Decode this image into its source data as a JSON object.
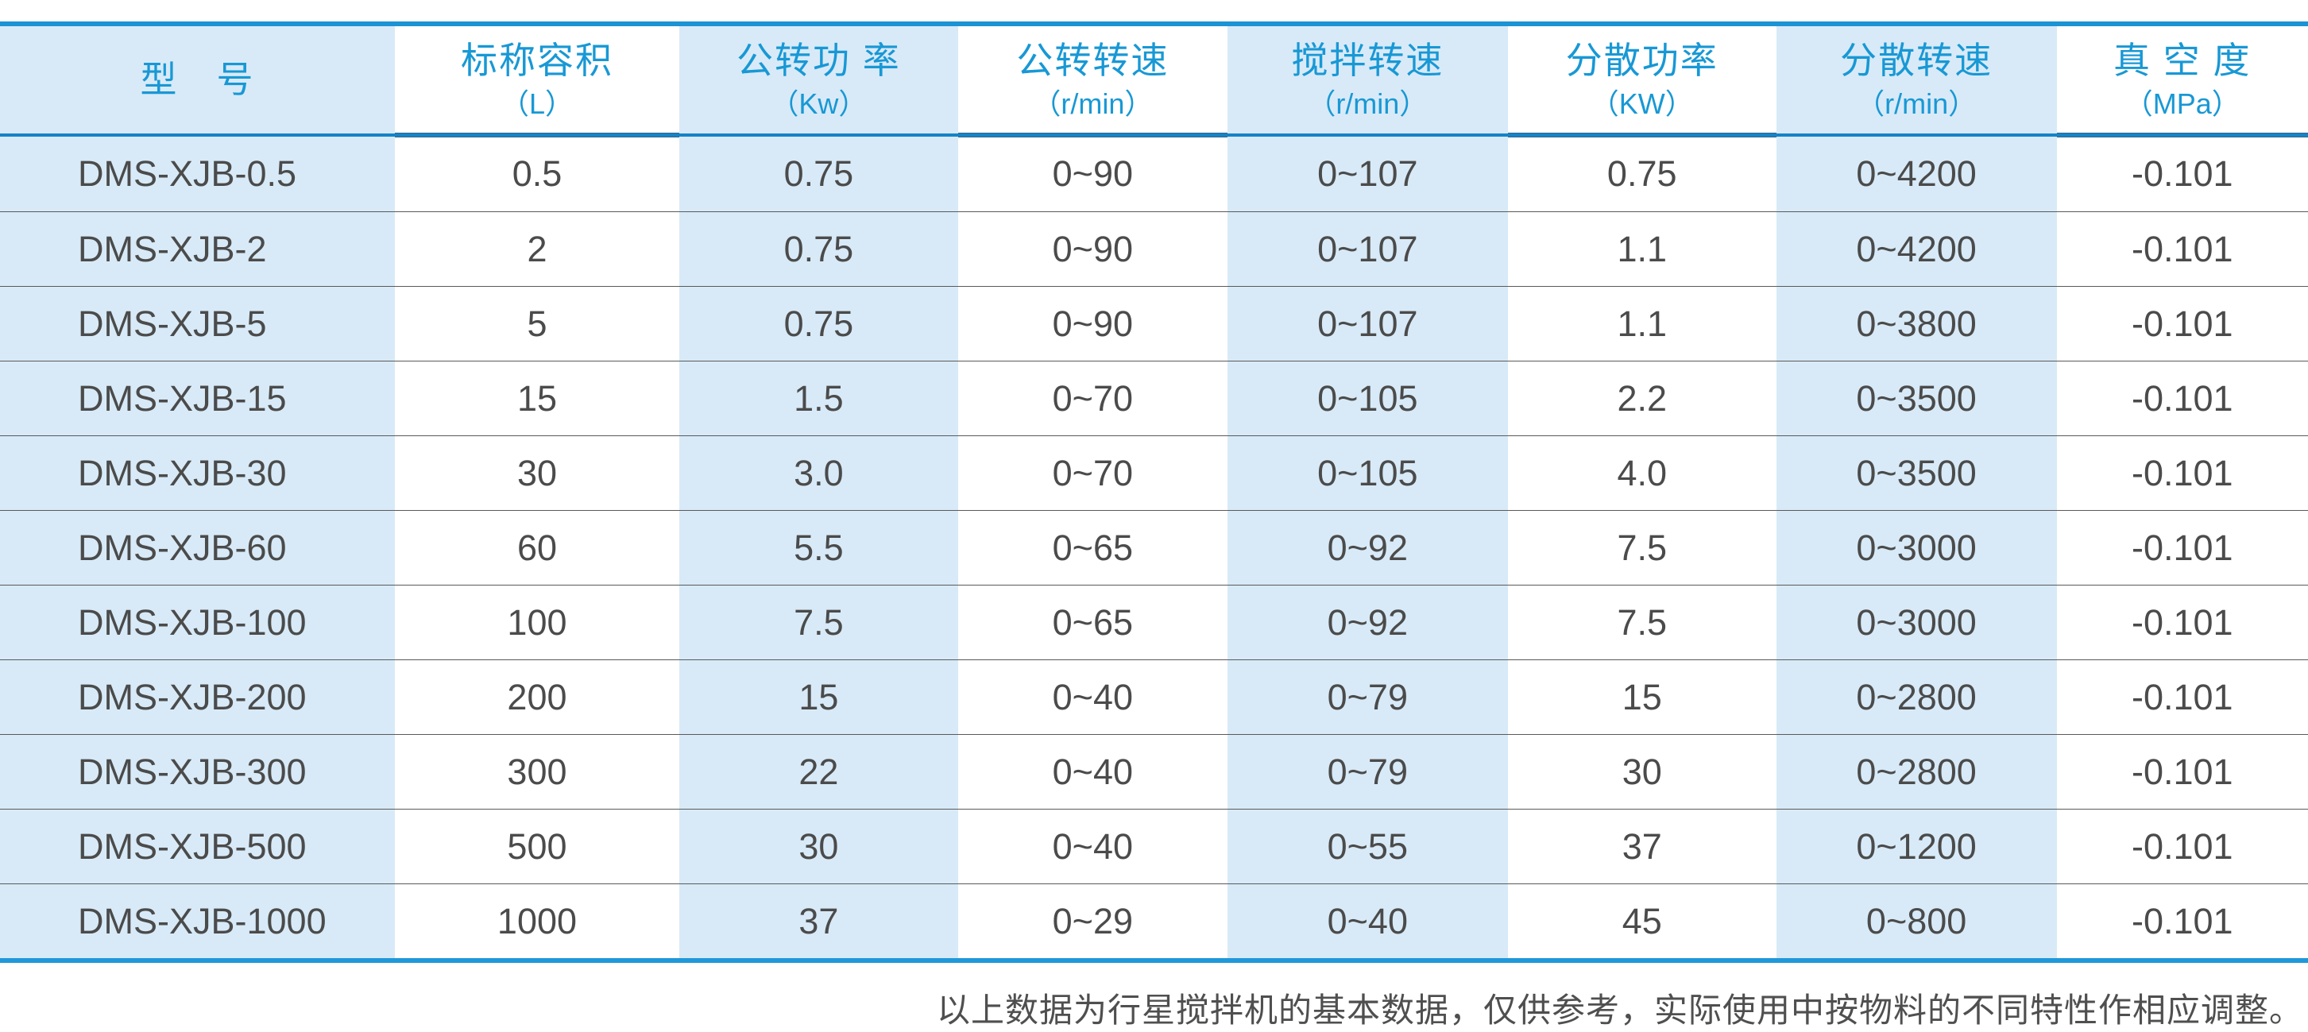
{
  "chart_data": {
    "type": "table",
    "columns": [
      {
        "label": "型　号",
        "unit": ""
      },
      {
        "label": "标称容积",
        "unit": "（L）"
      },
      {
        "label": "公转功 率",
        "unit": "（Kw）"
      },
      {
        "label": "公转转速",
        "unit": "（r/min）"
      },
      {
        "label": "搅拌转速",
        "unit": "（r/min）"
      },
      {
        "label": "分散功率",
        "unit": "（KW）"
      },
      {
        "label": "分散转速",
        "unit": "（r/min）"
      },
      {
        "label": "真 空 度",
        "unit": "（MPa）"
      }
    ],
    "rows": [
      [
        "DMS-XJB-0.5",
        "0.5",
        "0.75",
        "0~90",
        "0~107",
        "0.75",
        "0~4200",
        "-0.101"
      ],
      [
        "DMS-XJB-2",
        "2",
        "0.75",
        "0~90",
        "0~107",
        "1.1",
        "0~4200",
        "-0.101"
      ],
      [
        "DMS-XJB-5",
        "5",
        "0.75",
        "0~90",
        "0~107",
        "1.1",
        "0~3800",
        "-0.101"
      ],
      [
        "DMS-XJB-15",
        "15",
        "1.5",
        "0~70",
        "0~105",
        "2.2",
        "0~3500",
        "-0.101"
      ],
      [
        "DMS-XJB-30",
        "30",
        "3.0",
        "0~70",
        "0~105",
        "4.0",
        "0~3500",
        "-0.101"
      ],
      [
        "DMS-XJB-60",
        "60",
        "5.5",
        "0~65",
        "0~92",
        "7.5",
        "0~3000",
        "-0.101"
      ],
      [
        "DMS-XJB-100",
        "100",
        "7.5",
        "0~65",
        "0~92",
        "7.5",
        "0~3000",
        "-0.101"
      ],
      [
        "DMS-XJB-200",
        "200",
        "15",
        "0~40",
        "0~79",
        "15",
        "0~2800",
        "-0.101"
      ],
      [
        "DMS-XJB-300",
        "300",
        "22",
        "0~40",
        "0~79",
        "30",
        "0~2800",
        "-0.101"
      ],
      [
        "DMS-XJB-500",
        "500",
        "30",
        "0~40",
        "0~55",
        "37",
        "0~1200",
        "-0.101"
      ],
      [
        "DMS-XJB-1000",
        "1000",
        "37",
        "0~29",
        "0~40",
        "45",
        "0~800",
        "-0.101"
      ]
    ]
  },
  "footnote": "以上数据为行星搅拌机的基本数据，仅供参考，实际使用中按物料的不同特性作相应调整。",
  "colors": {
    "header_text": "#1898d5",
    "body_text": "#4b4b4b",
    "stripe_blue": "#d8eaf7",
    "top_border": "#1b93d4",
    "header_divider": "#1484c7",
    "bottom_border": "#2098d9",
    "row_divider": "#5a5a5a"
  }
}
